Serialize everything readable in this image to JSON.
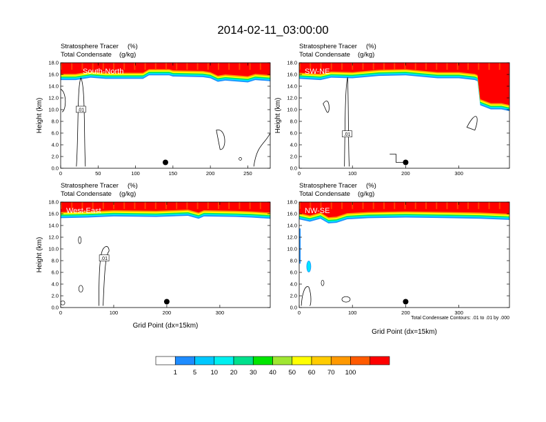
{
  "figure": {
    "title": "2014-02-11_03:00:00",
    "contour_note": "Total Condensate Contours: .01 to .01 by .000",
    "colors": {
      "red": "#ff0000",
      "orange_red": "#ff5a00",
      "orange": "#ff9a00",
      "yellow": "#ffff00",
      "green": "#00e65a",
      "cyan": "#00e5ff",
      "blue": "#1e90ff",
      "marker": "#000000"
    }
  },
  "colorbar": {
    "labels": [
      "1",
      "5",
      "10",
      "20",
      "30",
      "40",
      "50",
      "60",
      "70",
      "100"
    ],
    "colors": [
      "#ffffff",
      "#1e8cff",
      "#00c8ff",
      "#00f0f0",
      "#00e08c",
      "#00e600",
      "#a0e632",
      "#ffff00",
      "#ffcc00",
      "#ff9900",
      "#ff5a00",
      "#ff0000"
    ]
  },
  "chart_data": [
    {
      "type": "heatmap",
      "panel_label": "South-North",
      "subtitle_left_1": "Stratosphere Tracer",
      "subtitle_right_1": "(%)",
      "subtitle_left_2": "Total Condensate",
      "subtitle_right_2": "(g/kg)",
      "ylabel": "Height (km)",
      "xlabel": "",
      "xlim": [
        0,
        280
      ],
      "ylim": [
        0,
        18
      ],
      "xticks": [
        0,
        50,
        100,
        150,
        200,
        250
      ],
      "yticks": [
        "0.0",
        "2.0",
        "4.0",
        "6.0",
        "8.0",
        "10.0",
        "12.0",
        "14.0",
        "16.0",
        "18.0"
      ],
      "contour_label": ".01",
      "marker": {
        "x": 140,
        "y": 1.0
      },
      "tropopause_profile": [
        [
          0,
          15.6
        ],
        [
          20,
          15.6
        ],
        [
          40,
          16.0
        ],
        [
          60,
          15.8
        ],
        [
          110,
          15.8
        ],
        [
          118,
          16.4
        ],
        [
          145,
          16.4
        ],
        [
          150,
          16.2
        ],
        [
          190,
          16.1
        ],
        [
          200,
          15.9
        ],
        [
          210,
          15.3
        ],
        [
          220,
          15.5
        ],
        [
          250,
          15.2
        ],
        [
          260,
          15.6
        ],
        [
          280,
          15.4
        ]
      ]
    },
    {
      "type": "heatmap",
      "panel_label": "SW-NE",
      "subtitle_left_1": "Stratosphere Tracer",
      "subtitle_right_1": "(%)",
      "subtitle_left_2": "Total Condensate",
      "subtitle_right_2": "(g/kg)",
      "ylabel": "Height (km)",
      "xlabel": "",
      "xlim": [
        0,
        395
      ],
      "ylim": [
        0,
        18
      ],
      "xticks": [
        0,
        100,
        200,
        300
      ],
      "yticks": [
        "0.0",
        "2.0",
        "4.0",
        "6.0",
        "8.0",
        "10.0",
        "12.0",
        "14.0",
        "16.0",
        "18.0"
      ],
      "contour_label": ".01",
      "marker": {
        "x": 200,
        "y": 1.0
      },
      "tropopause_profile": [
        [
          0,
          15.8
        ],
        [
          40,
          15.6
        ],
        [
          60,
          16.0
        ],
        [
          100,
          15.9
        ],
        [
          150,
          16.3
        ],
        [
          200,
          16.4
        ],
        [
          260,
          15.9
        ],
        [
          300,
          15.9
        ],
        [
          330,
          15.6
        ],
        [
          335,
          15.4
        ],
        [
          340,
          11.3
        ],
        [
          360,
          10.6
        ],
        [
          380,
          10.6
        ],
        [
          395,
          10.3
        ]
      ]
    },
    {
      "type": "heatmap",
      "panel_label": "West-East",
      "subtitle_left_1": "Stratosphere Tracer",
      "subtitle_right_1": "(%)",
      "subtitle_left_2": "Total Condensate",
      "subtitle_right_2": "(g/kg)",
      "ylabel": "Height (km)",
      "xlabel": "Grid Point (dx=15km)",
      "xlim": [
        0,
        395
      ],
      "ylim": [
        0,
        18
      ],
      "xticks": [
        0,
        100,
        200,
        300
      ],
      "yticks": [
        "0.0",
        "2.0",
        "4.0",
        "6.0",
        "8.0",
        "10.0",
        "12.0",
        "14.0",
        "16.0",
        "18.0"
      ],
      "contour_label": ".01",
      "marker": {
        "x": 200,
        "y": 1.0
      },
      "tropopause_profile": [
        [
          0,
          15.8
        ],
        [
          50,
          15.9
        ],
        [
          100,
          16.1
        ],
        [
          180,
          16.0
        ],
        [
          240,
          16.2
        ],
        [
          260,
          15.7
        ],
        [
          270,
          16.1
        ],
        [
          330,
          16.0
        ],
        [
          360,
          15.9
        ],
        [
          395,
          15.7
        ]
      ]
    },
    {
      "type": "heatmap",
      "panel_label": "NW-SE",
      "subtitle_left_1": "Stratosphere Tracer",
      "subtitle_right_1": "(%)",
      "subtitle_left_2": "Total Condensate",
      "subtitle_right_2": "(g/kg)",
      "ylabel": "",
      "xlabel": "Grid Point (dx=15km)",
      "xlim": [
        0,
        395
      ],
      "ylim": [
        0,
        18
      ],
      "xticks": [
        0,
        100,
        200,
        300
      ],
      "yticks": [
        "0.0",
        "2.0",
        "4.0",
        "6.0",
        "8.0",
        "10.0",
        "12.0",
        "14.0",
        "16.0",
        "18.0"
      ],
      "contour_label": "",
      "marker": {
        "x": 200,
        "y": 1.0
      },
      "tropopause_profile": [
        [
          0,
          15.6
        ],
        [
          20,
          15.2
        ],
        [
          40,
          15.7
        ],
        [
          55,
          14.9
        ],
        [
          70,
          15.0
        ],
        [
          90,
          15.6
        ],
        [
          130,
          15.8
        ],
        [
          200,
          15.9
        ],
        [
          280,
          15.8
        ],
        [
          340,
          15.7
        ],
        [
          395,
          15.5
        ]
      ]
    }
  ]
}
